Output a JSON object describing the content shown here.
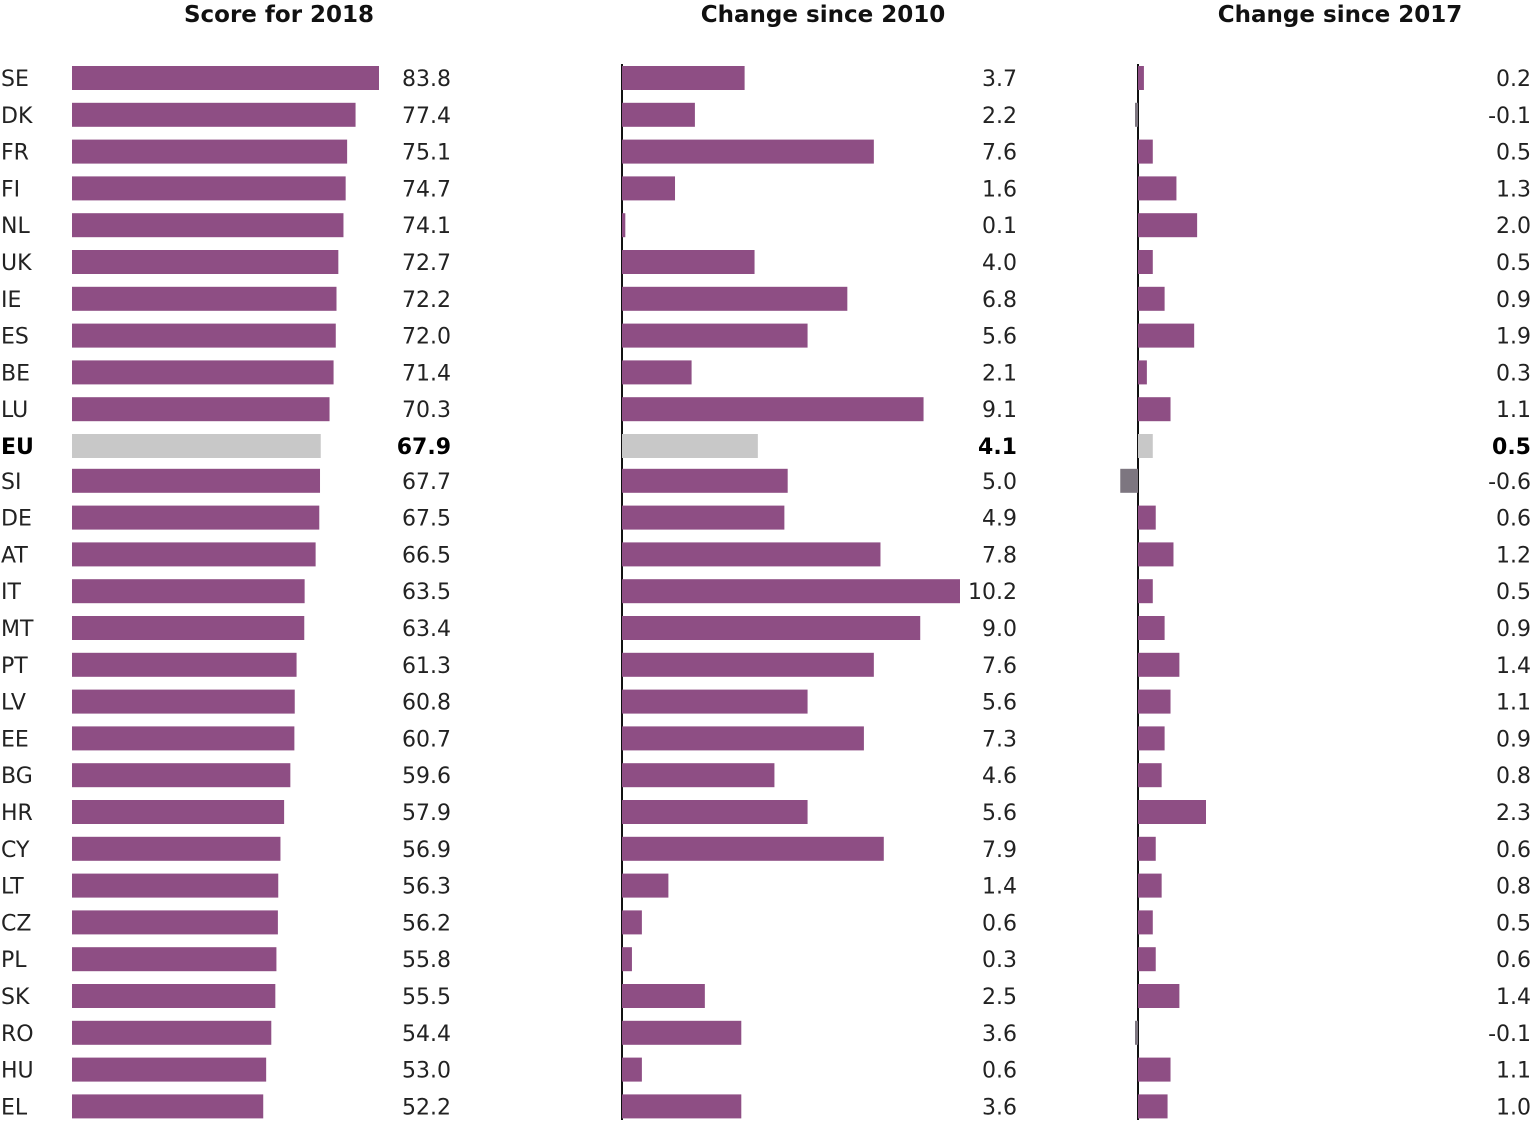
{
  "chart_data": {
    "type": "bar",
    "orientation": "horizontal",
    "categories": [
      "SE",
      "DK",
      "FR",
      "FI",
      "NL",
      "UK",
      "IE",
      "ES",
      "BE",
      "LU",
      "EU",
      "SI",
      "DE",
      "AT",
      "IT",
      "MT",
      "PT",
      "LV",
      "EE",
      "BG",
      "HR",
      "CY",
      "LT",
      "CZ",
      "PL",
      "SK",
      "RO",
      "HU",
      "EL"
    ],
    "highlight_category": "EU",
    "series": [
      {
        "name": "Score for 2018",
        "values": [
          83.8,
          77.4,
          75.1,
          74.7,
          74.1,
          72.7,
          72.2,
          72.0,
          71.4,
          70.3,
          67.9,
          67.7,
          67.5,
          66.5,
          63.5,
          63.4,
          61.3,
          60.8,
          60.7,
          59.6,
          57.9,
          56.9,
          56.3,
          56.2,
          55.8,
          55.5,
          54.4,
          53.0,
          52.2
        ],
        "labels": [
          "83.8",
          "77.4",
          "75.1",
          "74.7",
          "74.1",
          "72.7",
          "72.2",
          "72.0",
          "71.4",
          "70.3",
          "67.9",
          "67.7",
          "67.5",
          "66.5",
          "63.5",
          "63.4",
          "61.3",
          "60.8",
          "60.7",
          "59.6",
          "57.9",
          "56.9",
          "56.3",
          "56.2",
          "55.8",
          "55.5",
          "54.4",
          "53.0",
          "52.2"
        ],
        "xlim": [
          0,
          83.8
        ]
      },
      {
        "name": "Change since 2010",
        "values": [
          3.7,
          2.2,
          7.6,
          1.6,
          0.1,
          4.0,
          6.8,
          5.6,
          2.1,
          9.1,
          4.1,
          5.0,
          4.9,
          7.8,
          10.2,
          9.0,
          7.6,
          5.6,
          7.3,
          4.6,
          5.6,
          7.9,
          1.4,
          0.6,
          0.3,
          2.5,
          3.6,
          0.6,
          3.6
        ],
        "labels": [
          "3.7",
          "2.2",
          "7.6",
          "1.6",
          "0.1",
          "4.0",
          "6.8",
          "5.6",
          "2.1",
          "9.1",
          "4.1",
          "5.0",
          "4.9",
          "7.8",
          "10.2",
          "9.0",
          "7.6",
          "5.6",
          "7.3",
          "4.6",
          "5.6",
          "7.9",
          "1.4",
          "0.6",
          "0.3",
          "2.5",
          "3.6",
          "0.6",
          "3.6"
        ],
        "xlim": [
          0,
          10.2
        ]
      },
      {
        "name": "Change since 2017",
        "values": [
          0.2,
          -0.1,
          0.5,
          1.3,
          2.0,
          0.5,
          0.9,
          1.9,
          0.3,
          1.1,
          0.5,
          -0.6,
          0.6,
          1.2,
          0.5,
          0.9,
          1.4,
          1.1,
          0.9,
          0.8,
          2.3,
          0.6,
          0.8,
          0.5,
          0.6,
          1.4,
          -0.1,
          1.1,
          1.0
        ],
        "labels": [
          "0.2",
          "-0.1",
          "0.5",
          "1.3",
          "2.0",
          "0.5",
          "0.9",
          "1.9",
          "0.3",
          "1.1",
          "0.5",
          "-0.6",
          "0.6",
          "1.2",
          "0.5",
          "0.9",
          "1.4",
          "1.1",
          "0.9",
          "0.8",
          "2.3",
          "0.6",
          "0.8",
          "0.5",
          "0.6",
          "1.4",
          "-0.1",
          "1.1",
          "1.0"
        ],
        "xlim": [
          -0.6,
          2.3
        ]
      }
    ],
    "grid": false,
    "legend": "none"
  },
  "colors": {
    "bar": "#8e4e84",
    "highlight_bar": "#c8c8c8",
    "negative_bar": "#7d7680",
    "axis": "#111111",
    "text": "#222222"
  }
}
